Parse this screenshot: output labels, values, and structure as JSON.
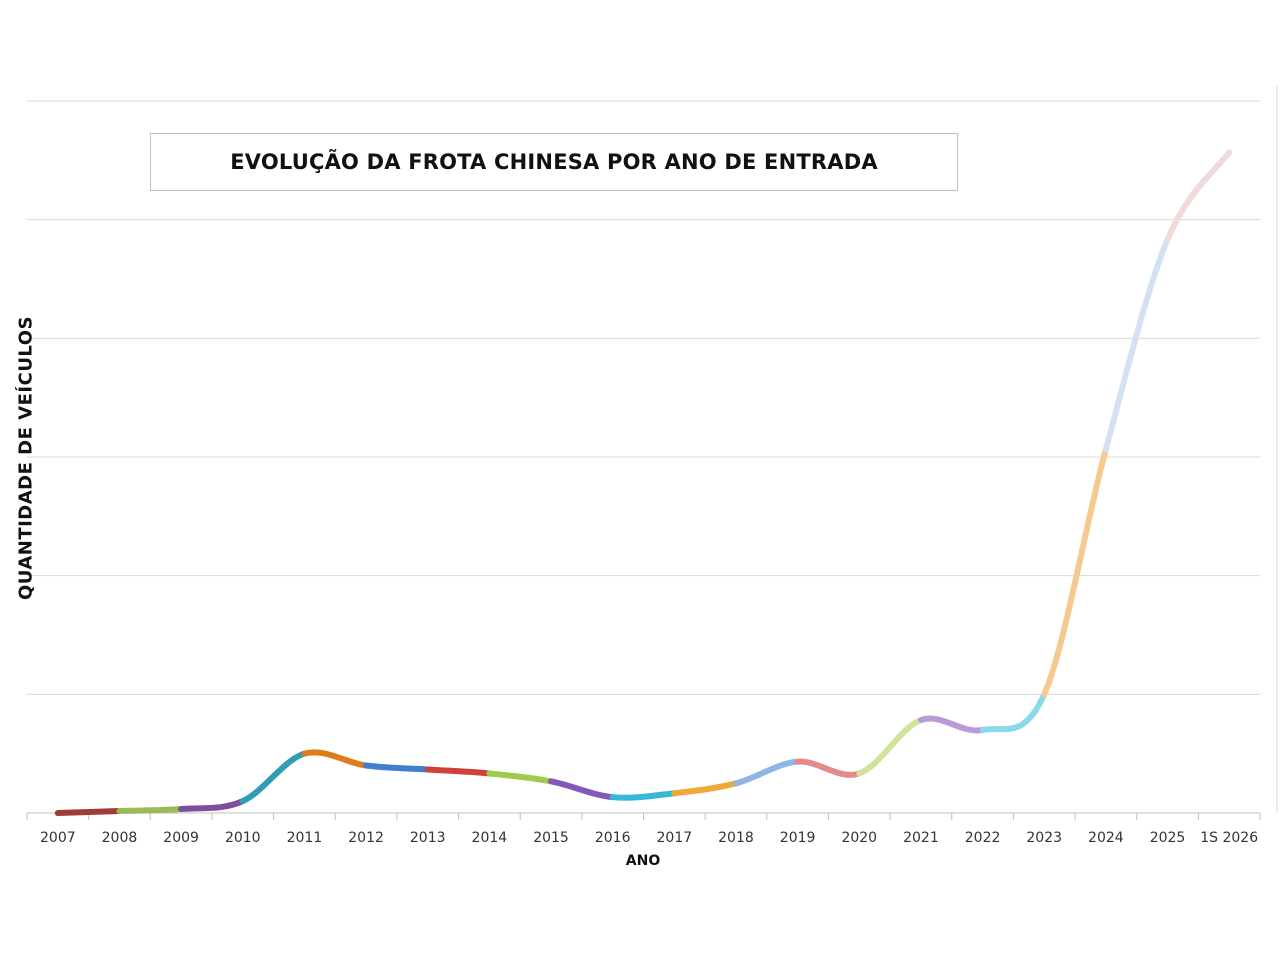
{
  "chart_data": {
    "type": "line",
    "title": "EVOLUÇÃO DA FROTA CHINESA POR ANO DE ENTRADA",
    "xlabel": "ANO",
    "ylabel": "QUANTIDADE DE VEÍCULOS",
    "categories": [
      "2007",
      "2008",
      "2009",
      "2010",
      "2011",
      "2012",
      "2013",
      "2014",
      "2015",
      "2016",
      "2017",
      "2018",
      "2019",
      "2020",
      "2021",
      "2022",
      "2023",
      "2024",
      "2025",
      "1S 2026"
    ],
    "values": [
      0.0,
      0.05,
      0.1,
      0.3,
      1.5,
      1.2,
      1.1,
      1.0,
      0.8,
      0.4,
      0.5,
      0.75,
      1.3,
      1.0,
      2.35,
      2.1,
      3.0,
      9.2,
      14.5,
      16.7
    ],
    "segment_colors": [
      "#a33a3a",
      "#9bbb59",
      "#7b4f9e",
      "#2e9db5",
      "#e07b1a",
      "#3f7fd0",
      "#d0413b",
      "#9ccc4a",
      "#8458b8",
      "#33b8d8",
      "#f0a83a",
      "#8fb5e6",
      "#e58a8a",
      "#cfe39a",
      "#b89bd6",
      "#8ad9ea",
      "#f5c98f",
      "#d3e2f2",
      "#f0dada"
    ],
    "ylim": [
      0,
      18
    ],
    "yticks": [
      0,
      3,
      6,
      9,
      12,
      15,
      18
    ],
    "y_tick_labels_shown": false,
    "grid": true,
    "legend": "none"
  }
}
